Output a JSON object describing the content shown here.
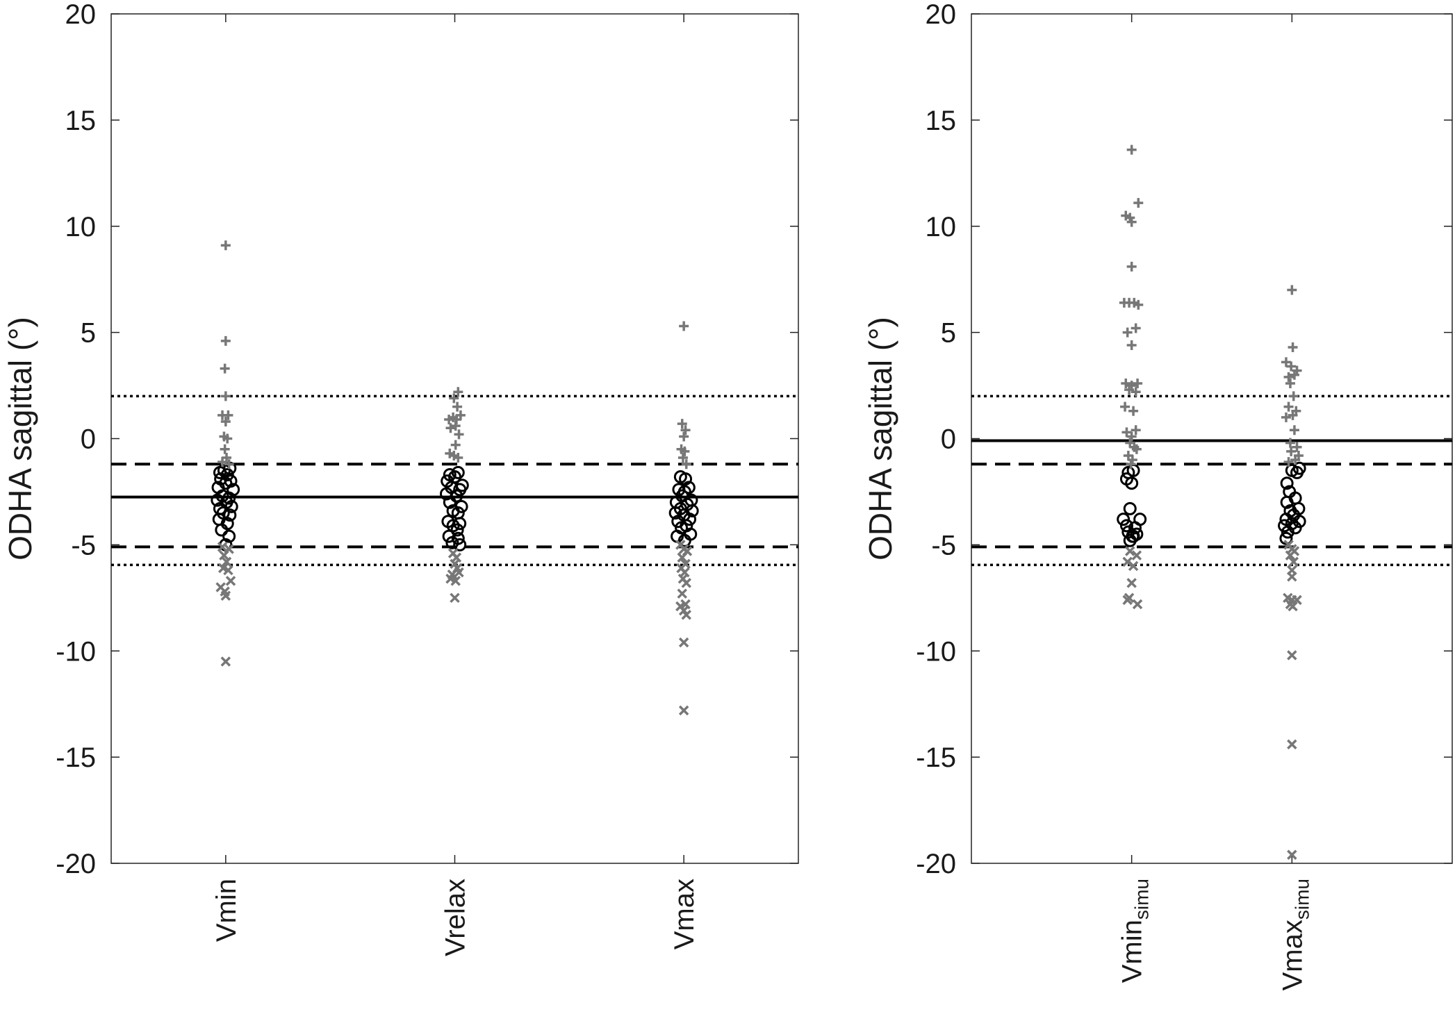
{
  "chart_data": [
    {
      "type": "scatter",
      "ylabel": "ODHA sagittal (°)",
      "ylim": [
        -20,
        20
      ],
      "yticks": [
        20,
        15,
        10,
        5,
        0,
        -5,
        -10,
        -15,
        -20
      ],
      "categories": [
        {
          "label": "Vmin",
          "sub": ""
        },
        {
          "label": "Vrelax",
          "sub": ""
        },
        {
          "label": "Vmax",
          "sub": ""
        }
      ],
      "reference_lines": {
        "solid": -2.75,
        "dashed": [
          -1.2,
          -5.1
        ],
        "dotted": [
          2.0,
          -5.95
        ]
      },
      "marker_colors": {
        "circle": "#000000",
        "plus": "#777777",
        "cross": "#777777"
      },
      "series": [
        {
          "marker": "circle",
          "points": [
            [
              -0.35,
              -1.6
            ],
            [
              0.25,
              -1.4
            ],
            [
              -0.1,
              -1.5
            ],
            [
              0.1,
              -1.7
            ],
            [
              -0.3,
              -1.9
            ],
            [
              0.3,
              -2.0
            ],
            [
              -0.45,
              -2.3
            ],
            [
              0.45,
              -2.4
            ],
            [
              0.0,
              -2.1
            ],
            [
              -0.2,
              -2.7
            ],
            [
              0.2,
              -2.8
            ],
            [
              -0.5,
              -2.9
            ],
            [
              0.05,
              -3.0
            ],
            [
              -0.35,
              -3.3
            ],
            [
              0.35,
              -3.2
            ],
            [
              -0.15,
              -3.5
            ],
            [
              0.25,
              -3.6
            ],
            [
              -0.4,
              -3.8
            ],
            [
              0.1,
              -4.0
            ],
            [
              -0.25,
              -4.3
            ],
            [
              0.2,
              -4.6
            ],
            [
              0.0,
              -5.0
            ]
          ]
        },
        {
          "marker": "plus",
          "points": [
            [
              0.0,
              9.1
            ],
            [
              0.0,
              4.6
            ],
            [
              -0.05,
              3.3
            ],
            [
              0.0,
              2.0
            ],
            [
              -0.2,
              1.1
            ],
            [
              0.15,
              1.1
            ],
            [
              0.0,
              0.8
            ],
            [
              -0.1,
              0.1
            ],
            [
              0.1,
              0.0
            ],
            [
              -0.05,
              -0.5
            ],
            [
              0.05,
              -0.9
            ],
            [
              -0.2,
              -1.1
            ],
            [
              0.2,
              -1.2
            ]
          ]
        },
        {
          "marker": "cross",
          "points": [
            [
              -0.2,
              -5.1
            ],
            [
              0.2,
              -5.2
            ],
            [
              -0.1,
              -5.5
            ],
            [
              0.05,
              -5.8
            ],
            [
              -0.15,
              -6.1
            ],
            [
              0.15,
              -6.2
            ],
            [
              0.3,
              -6.7
            ],
            [
              -0.3,
              -7.0
            ],
            [
              -0.05,
              -7.2
            ],
            [
              0.0,
              -7.4
            ],
            [
              0.0,
              -10.5
            ]
          ]
        },
        {
          "marker": "circle",
          "points": [
            [
              -0.3,
              -1.7
            ],
            [
              0.2,
              -1.6
            ],
            [
              0.0,
              -1.8
            ],
            [
              -0.45,
              -2.0
            ],
            [
              0.45,
              -2.2
            ],
            [
              -0.2,
              -2.3
            ],
            [
              0.3,
              -2.4
            ],
            [
              -0.5,
              -2.6
            ],
            [
              0.1,
              -2.7
            ],
            [
              -0.3,
              -3.0
            ],
            [
              0.4,
              -3.2
            ],
            [
              -0.1,
              -3.4
            ],
            [
              0.2,
              -3.5
            ],
            [
              -0.4,
              -3.9
            ],
            [
              0.3,
              -4.0
            ],
            [
              -0.1,
              -4.1
            ],
            [
              0.15,
              -4.3
            ],
            [
              -0.35,
              -4.6
            ],
            [
              0.2,
              -4.7
            ],
            [
              -0.15,
              -4.9
            ],
            [
              0.3,
              -5.0
            ]
          ]
        },
        {
          "marker": "plus",
          "points": [
            [
              0.2,
              2.2
            ],
            [
              -0.05,
              1.9
            ],
            [
              0.15,
              1.5
            ],
            [
              0.35,
              1.1
            ],
            [
              -0.35,
              0.9
            ],
            [
              -0.1,
              1.0
            ],
            [
              0.1,
              0.9
            ],
            [
              -0.25,
              0.5
            ],
            [
              0.05,
              0.6
            ],
            [
              0.25,
              0.2
            ],
            [
              0.05,
              -0.3
            ],
            [
              -0.3,
              -0.7
            ],
            [
              -0.05,
              -0.8
            ],
            [
              0.2,
              -0.9
            ]
          ]
        },
        {
          "marker": "cross",
          "points": [
            [
              -0.1,
              -5.4
            ],
            [
              0.1,
              -5.6
            ],
            [
              0.0,
              -5.9
            ],
            [
              0.15,
              -6.1
            ],
            [
              -0.15,
              -6.4
            ],
            [
              0.25,
              -6.3
            ],
            [
              -0.25,
              -6.6
            ],
            [
              0.05,
              -6.7
            ],
            [
              0.0,
              -7.5
            ]
          ]
        },
        {
          "marker": "circle",
          "points": [
            [
              -0.2,
              -1.8
            ],
            [
              0.1,
              -1.9
            ],
            [
              0.3,
              -2.3
            ],
            [
              -0.3,
              -2.4
            ],
            [
              0.05,
              -2.5
            ],
            [
              -0.1,
              -2.7
            ],
            [
              0.45,
              -2.9
            ],
            [
              -0.45,
              -3.0
            ],
            [
              0.2,
              -3.1
            ],
            [
              -0.2,
              -3.3
            ],
            [
              0.5,
              -3.4
            ],
            [
              -0.5,
              -3.5
            ],
            [
              0.0,
              -3.6
            ],
            [
              0.35,
              -3.8
            ],
            [
              -0.35,
              -3.9
            ],
            [
              0.15,
              -4.1
            ],
            [
              -0.15,
              -4.2
            ],
            [
              0.4,
              -4.5
            ],
            [
              -0.4,
              -4.6
            ],
            [
              0.05,
              -4.8
            ]
          ]
        },
        {
          "marker": "plus",
          "points": [
            [
              0.0,
              5.3
            ],
            [
              -0.1,
              0.7
            ],
            [
              0.1,
              0.4
            ],
            [
              0.0,
              0.1
            ],
            [
              -0.15,
              -0.5
            ],
            [
              0.05,
              -0.6
            ],
            [
              -0.05,
              -0.9
            ],
            [
              0.15,
              -1.2
            ]
          ]
        },
        {
          "marker": "cross",
          "points": [
            [
              -0.2,
              -5.0
            ],
            [
              0.0,
              -5.2
            ],
            [
              0.2,
              -5.3
            ],
            [
              -0.1,
              -5.6
            ],
            [
              0.1,
              -5.9
            ],
            [
              -0.15,
              -6.1
            ],
            [
              0.05,
              -6.3
            ],
            [
              -0.05,
              -6.6
            ],
            [
              0.15,
              -6.8
            ],
            [
              -0.1,
              -7.3
            ],
            [
              0.1,
              -7.8
            ],
            [
              -0.2,
              -7.9
            ],
            [
              0.0,
              -8.1
            ],
            [
              0.15,
              -8.3
            ],
            [
              0.0,
              -9.6
            ],
            [
              0.0,
              -12.8
            ]
          ]
        }
      ]
    },
    {
      "type": "scatter",
      "ylabel": "ODHA sagittal (°)",
      "ylim": [
        -20,
        20
      ],
      "yticks": [
        20,
        15,
        10,
        5,
        0,
        -5,
        -10,
        -15,
        -20
      ],
      "categories": [
        {
          "label": "Vmin",
          "sub": "simu"
        },
        {
          "label": "Vmax",
          "sub": "simu"
        }
      ],
      "reference_lines": {
        "solid": -0.1,
        "dashed": [
          -1.2,
          -5.1
        ],
        "dotted": [
          2.0,
          -5.95
        ]
      },
      "marker_colors": {
        "circle": "#000000",
        "plus": "#777777",
        "cross": "#777777"
      },
      "series": [
        {
          "marker": "circle",
          "points": [
            [
              -0.2,
              -1.6
            ],
            [
              0.1,
              -1.5
            ],
            [
              -0.3,
              -1.9
            ],
            [
              0.0,
              -2.1
            ],
            [
              -0.1,
              -3.3
            ],
            [
              -0.5,
              -3.8
            ],
            [
              0.5,
              -3.8
            ],
            [
              -0.3,
              -4.1
            ],
            [
              0.2,
              -4.2
            ],
            [
              -0.2,
              -4.4
            ],
            [
              0.1,
              -4.6
            ],
            [
              0.3,
              -4.5
            ],
            [
              -0.1,
              -4.8
            ],
            [
              0.05,
              -4.6
            ]
          ]
        },
        {
          "marker": "plus",
          "points": [
            [
              0.0,
              13.6
            ],
            [
              0.4,
              11.1
            ],
            [
              -0.35,
              10.5
            ],
            [
              -0.1,
              10.4
            ],
            [
              0.0,
              10.2
            ],
            [
              0.0,
              8.1
            ],
            [
              -0.45,
              6.4
            ],
            [
              -0.15,
              6.4
            ],
            [
              0.15,
              6.4
            ],
            [
              0.4,
              6.3
            ],
            [
              -0.25,
              5.0
            ],
            [
              0.25,
              5.2
            ],
            [
              0.0,
              4.4
            ],
            [
              -0.35,
              2.6
            ],
            [
              0.0,
              2.5
            ],
            [
              0.35,
              2.6
            ],
            [
              -0.15,
              2.3
            ],
            [
              0.25,
              2.2
            ],
            [
              -0.4,
              1.5
            ],
            [
              0.1,
              1.3
            ],
            [
              -0.3,
              0.3
            ],
            [
              0.25,
              0.4
            ],
            [
              0.0,
              0.1
            ],
            [
              -0.1,
              -0.2
            ],
            [
              0.15,
              -0.4
            ],
            [
              0.3,
              -0.5
            ],
            [
              -0.2,
              -0.8
            ],
            [
              0.05,
              -1.0
            ],
            [
              -0.05,
              -1.2
            ]
          ]
        },
        {
          "marker": "cross",
          "points": [
            [
              -0.1,
              -5.3
            ],
            [
              0.3,
              -5.5
            ],
            [
              -0.25,
              -5.8
            ],
            [
              0.1,
              -6.0
            ],
            [
              0.0,
              -6.8
            ],
            [
              -0.15,
              -7.5
            ],
            [
              -0.25,
              -7.6
            ],
            [
              0.35,
              -7.8
            ]
          ]
        },
        {
          "marker": "circle",
          "points": [
            [
              -0.3,
              -2.1
            ],
            [
              0.3,
              -1.6
            ],
            [
              0.0,
              -1.5
            ],
            [
              0.45,
              -1.4
            ],
            [
              -0.15,
              -2.5
            ],
            [
              0.2,
              -2.8
            ],
            [
              -0.3,
              -3.0
            ],
            [
              0.4,
              -3.3
            ],
            [
              -0.1,
              -3.4
            ],
            [
              0.1,
              -3.6
            ],
            [
              -0.35,
              -3.8
            ],
            [
              0.45,
              -3.9
            ],
            [
              0.0,
              -4.0
            ],
            [
              -0.45,
              -4.1
            ],
            [
              0.2,
              -4.2
            ],
            [
              -0.25,
              -4.4
            ],
            [
              -0.35,
              -4.7
            ]
          ]
        },
        {
          "marker": "plus",
          "points": [
            [
              0.0,
              7.0
            ],
            [
              0.05,
              4.3
            ],
            [
              -0.35,
              3.6
            ],
            [
              -0.05,
              3.4
            ],
            [
              0.3,
              3.2
            ],
            [
              -0.2,
              2.9
            ],
            [
              0.15,
              3.0
            ],
            [
              -0.1,
              2.6
            ],
            [
              0.1,
              2.0
            ],
            [
              -0.2,
              1.5
            ],
            [
              0.25,
              1.3
            ],
            [
              -0.35,
              1.0
            ],
            [
              0.05,
              1.1
            ],
            [
              0.15,
              0.4
            ],
            [
              -0.1,
              -0.2
            ],
            [
              0.3,
              -0.4
            ],
            [
              -0.05,
              -0.6
            ],
            [
              0.4,
              -0.8
            ],
            [
              0.2,
              -1.0
            ],
            [
              -0.2,
              -1.1
            ]
          ]
        },
        {
          "marker": "cross",
          "points": [
            [
              -0.2,
              -5.0
            ],
            [
              0.0,
              -5.2
            ],
            [
              0.15,
              -5.3
            ],
            [
              -0.1,
              -5.5
            ],
            [
              0.1,
              -5.8
            ],
            [
              0.0,
              -6.2
            ],
            [
              0.0,
              -6.5
            ],
            [
              -0.25,
              -7.5
            ],
            [
              0.0,
              -7.6
            ],
            [
              0.3,
              -7.6
            ],
            [
              -0.1,
              -7.8
            ],
            [
              0.05,
              -7.9
            ],
            [
              0.0,
              -10.2
            ],
            [
              0.0,
              -14.4
            ],
            [
              0.0,
              -19.6
            ]
          ]
        }
      ]
    }
  ]
}
